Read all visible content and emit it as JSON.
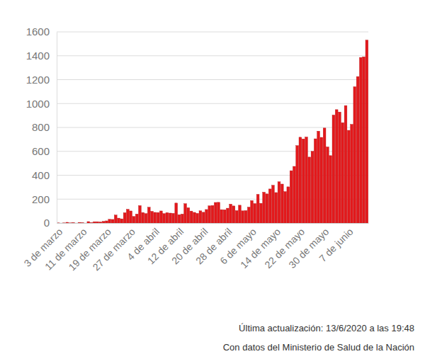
{
  "chart_data": {
    "type": "bar",
    "categories": [
      "3 de marzo",
      null,
      null,
      null,
      null,
      null,
      null,
      null,
      "11 de marzo",
      null,
      null,
      null,
      null,
      null,
      null,
      null,
      "19 de marzo",
      null,
      null,
      null,
      null,
      null,
      null,
      null,
      "27 de marzo",
      null,
      null,
      null,
      null,
      null,
      null,
      null,
      "4 de abril",
      null,
      null,
      null,
      null,
      null,
      null,
      null,
      "12 de abril",
      null,
      null,
      null,
      null,
      null,
      null,
      null,
      "20 de abril",
      null,
      null,
      null,
      null,
      null,
      null,
      null,
      "28 de abril",
      null,
      null,
      null,
      null,
      null,
      null,
      null,
      "6 de mayo",
      null,
      null,
      null,
      null,
      null,
      null,
      null,
      "14 de mayo",
      null,
      null,
      null,
      null,
      null,
      null,
      null,
      "22 de mayo",
      null,
      null,
      null,
      null,
      null,
      null,
      null,
      "30 de mayo",
      null,
      null,
      null,
      null,
      null,
      null,
      null,
      "7 de junio",
      null,
      null,
      null,
      null,
      null,
      null
    ],
    "values": [
      1,
      0,
      1,
      6,
      1,
      3,
      0,
      5,
      2,
      0,
      12,
      3,
      11,
      11,
      9,
      14,
      18,
      31,
      30,
      67,
      41,
      35,
      86,
      115,
      101,
      55,
      75,
      146,
      88,
      79,
      132,
      98,
      89,
      88,
      101,
      79,
      87,
      83,
      81,
      167,
      70,
      75,
      162,
      128,
      100,
      89,
      81,
      102,
      90,
      113,
      144,
      147,
      172,
      173,
      112,
      111,
      124,
      158,
      143,
      104,
      149,
      102,
      104,
      133,
      188,
      163,
      240,
      165,
      258,
      244,
      285,
      316,
      255,
      345,
      326,
      263,
      303,
      438,
      474,
      648,
      718,
      704,
      720,
      552,
      600,
      705,
      769,
      717,
      795,
      637,
      564,
      904,
      949,
      929,
      840,
      983,
      776,
      826,
      1141,
      1226,
      1386,
      1391,
      1531
    ],
    "color": "#e3191c",
    "ylim": [
      0,
      1600
    ],
    "yticks": [
      0,
      200,
      400,
      600,
      800,
      1000,
      1200,
      1400,
      1600
    ],
    "grid": true,
    "annotations": [
      "Última actualización: 13/6/2020 a las 19:48",
      "Con datos del Ministerio de Salud de la Nación"
    ]
  }
}
